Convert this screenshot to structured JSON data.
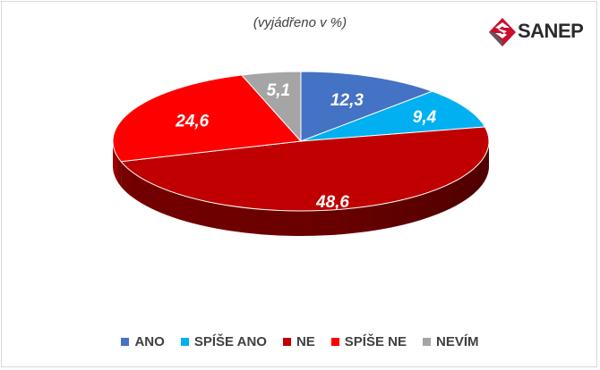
{
  "subtitle": "(vyjádřeno v %)",
  "logo": {
    "text": "SANEP",
    "colors": {
      "red": "#c8102e",
      "gray": "#5a5a5a"
    }
  },
  "chart_data": {
    "type": "pie",
    "is_3d": true,
    "start": "top, clockwise",
    "legend_position": "bottom",
    "slices": [
      {
        "name": "ANO",
        "value": 12.3,
        "label": "12,3",
        "color": "#4472c4",
        "side": "#2f528f"
      },
      {
        "name": "SPÍŠE ANO",
        "value": 9.4,
        "label": "9,4",
        "color": "#00b0f0",
        "side": "#007aa8"
      },
      {
        "name": "NE",
        "value": 48.6,
        "label": "48,6",
        "color": "#c00000",
        "side": "#7a0000"
      },
      {
        "name": "SPÍŠE NE",
        "value": 24.6,
        "label": "24,6",
        "color": "#ff0000",
        "side": "#a80000"
      },
      {
        "name": "NEVÍM",
        "value": 5.1,
        "label": "5,1",
        "color": "#a5a5a5",
        "side": "#6d6d6d"
      }
    ]
  }
}
